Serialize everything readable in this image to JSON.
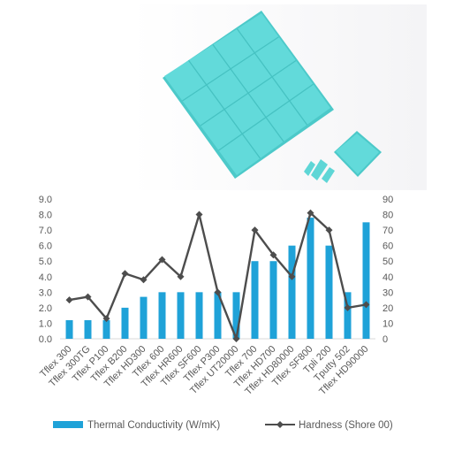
{
  "colors": {
    "bar": "#1fa2d8",
    "line": "#4d4d4d",
    "axis": "#d9d9d9",
    "text": "#595959",
    "pad": "#5ed6d6",
    "pad_edge": "#41bcbc"
  },
  "chart_data": {
    "type": "bar",
    "categories": [
      "Tflex 300",
      "Tflex 300TG",
      "Tflex P100",
      "Tflex B200",
      "Tflex HD300",
      "Tflex 600",
      "Tflex HR600",
      "Tflex SF600",
      "Tflex P300",
      "Tflex UT20000",
      "Tflex 700",
      "Tflex HD700",
      "Tflex HD80000",
      "Tflex SF800",
      "Tpli 200",
      "Tputty 502",
      "Tflex HD90000"
    ],
    "series": [
      {
        "name": "Thermal Conductivity (W/mK)",
        "type": "bar",
        "axis": "left",
        "values": [
          1.2,
          1.2,
          1.2,
          2.0,
          2.7,
          3.0,
          3.0,
          3.0,
          3.0,
          3.0,
          5.0,
          5.0,
          6.0,
          7.8,
          6.0,
          3.0,
          7.5
        ]
      },
      {
        "name": "Hardness (Shore 00)",
        "type": "line",
        "axis": "right",
        "values": [
          25,
          27,
          13,
          42,
          38,
          51,
          40,
          80,
          30,
          0,
          70,
          54,
          40,
          81,
          70,
          20,
          22
        ]
      }
    ],
    "left_ticks": [
      "0.0",
      "1.0",
      "2.0",
      "3.0",
      "4.0",
      "5.0",
      "6.0",
      "7.0",
      "8.0",
      "9.0"
    ],
    "right_ticks": [
      "0",
      "10",
      "20",
      "30",
      "40",
      "50",
      "60",
      "70",
      "80",
      "90"
    ],
    "ylim_left": [
      0,
      9
    ],
    "ylim_right": [
      0,
      90
    ],
    "legend": "bottom",
    "grid": false
  }
}
